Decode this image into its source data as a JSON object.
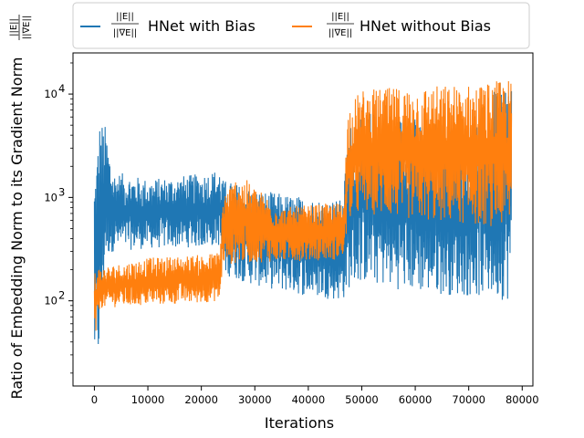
{
  "chart_data": {
    "type": "line",
    "title": "",
    "xlabel": "Iterations",
    "ylabel": "Ratio of Embedding Norm to its Gradient Norm",
    "ylabel_fraction": {
      "numerator": "||E||",
      "denominator": "||∇E||"
    },
    "y_scale": "log",
    "xlim": [
      -4000,
      82000
    ],
    "ylim": [
      15,
      25000
    ],
    "x_ticks": [
      0,
      10000,
      20000,
      30000,
      40000,
      50000,
      60000,
      70000,
      80000
    ],
    "x_tick_labels": [
      "0",
      "10000",
      "20000",
      "30000",
      "40000",
      "50000",
      "60000",
      "70000",
      "80000"
    ],
    "y_ticks": [
      100,
      1000,
      10000
    ],
    "y_tick_base": "10",
    "y_tick_exponents": [
      "2",
      "3",
      "4"
    ],
    "grid": false,
    "legend_position": "top, outside, above plot",
    "series": [
      {
        "name": "HNet with Bias",
        "legend_fraction": {
          "numerator": "||E||",
          "denominator": "||∇E||"
        },
        "color": "#1f77b4",
        "envelope": [
          {
            "x": 0,
            "low": 23,
            "high": 1800
          },
          {
            "x": 1000,
            "low": 25,
            "high": 6000
          },
          {
            "x": 2000,
            "low": 250,
            "high": 5000
          },
          {
            "x": 3500,
            "low": 300,
            "high": 1800
          },
          {
            "x": 10000,
            "low": 320,
            "high": 1500
          },
          {
            "x": 20000,
            "low": 330,
            "high": 1700
          },
          {
            "x": 23500,
            "low": 340,
            "high": 1900
          },
          {
            "x": 24000,
            "low": 180,
            "high": 1500
          },
          {
            "x": 30000,
            "low": 140,
            "high": 1200
          },
          {
            "x": 40000,
            "low": 110,
            "high": 1000
          },
          {
            "x": 46500,
            "low": 100,
            "high": 950
          },
          {
            "x": 47500,
            "low": 130,
            "high": 5000
          },
          {
            "x": 50000,
            "low": 150,
            "high": 7000
          },
          {
            "x": 60000,
            "low": 120,
            "high": 6000
          },
          {
            "x": 70000,
            "low": 110,
            "high": 5000
          },
          {
            "x": 78000,
            "low": 100,
            "high": 18000
          }
        ]
      },
      {
        "name": "HNet without Bias",
        "legend_fraction": {
          "numerator": "||E||",
          "denominator": "||∇E||"
        },
        "color": "#ff7f0e",
        "envelope": [
          {
            "x": 0,
            "low": 33,
            "high": 230
          },
          {
            "x": 1000,
            "low": 85,
            "high": 210
          },
          {
            "x": 10000,
            "low": 90,
            "high": 260
          },
          {
            "x": 20000,
            "low": 95,
            "high": 280
          },
          {
            "x": 23500,
            "low": 100,
            "high": 300
          },
          {
            "x": 24000,
            "low": 220,
            "high": 1100
          },
          {
            "x": 27000,
            "low": 230,
            "high": 1700
          },
          {
            "x": 35000,
            "low": 240,
            "high": 800
          },
          {
            "x": 46500,
            "low": 250,
            "high": 900
          },
          {
            "x": 47500,
            "low": 600,
            "high": 8000
          },
          {
            "x": 50000,
            "low": 700,
            "high": 11000
          },
          {
            "x": 60000,
            "low": 600,
            "high": 12000
          },
          {
            "x": 70000,
            "low": 550,
            "high": 12500
          },
          {
            "x": 78000,
            "low": 500,
            "high": 14000
          }
        ]
      }
    ]
  }
}
